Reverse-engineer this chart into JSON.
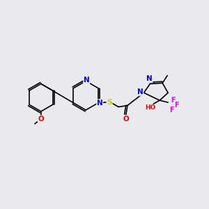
{
  "background_color": "#e8eaee",
  "bond_color": "#000000",
  "atom_colors": {
    "N": "#0000ee",
    "O": "#ee0000",
    "S": "#cccc00",
    "F": "#ee00ee",
    "C": "#000000"
  },
  "figsize": [
    3.0,
    3.0
  ],
  "dpi": 100
}
